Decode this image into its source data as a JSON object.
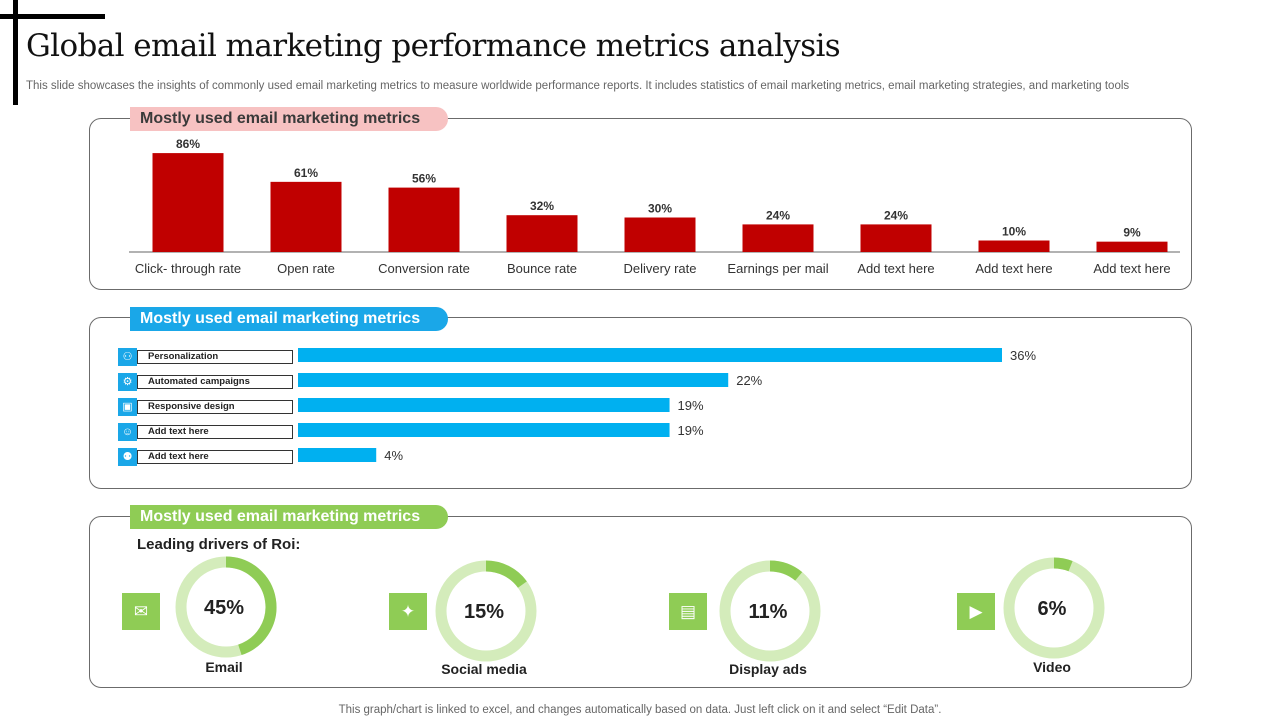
{
  "header": {
    "title": "Global email marketing performance metrics analysis",
    "subtitle": "This slide showcases the insights of commonly used email marketing metrics to measure worldwide performance reports. It includes statistics of email marketing metrics, email marketing strategies, and marketing tools"
  },
  "sections": {
    "metrics_label": "Mostly used email marketing metrics",
    "strategies_label": "Mostly used email marketing metrics",
    "tools_label": "Mostly used email marketing metrics"
  },
  "chart_data": [
    {
      "type": "bar",
      "categories": [
        "Click- through rate",
        "Open rate",
        "Conversion rate",
        "Bounce rate",
        "Delivery rate",
        "Earnings per mail",
        "Add text here",
        "Add text here",
        "Add text here"
      ],
      "values": [
        86,
        61,
        56,
        32,
        30,
        24,
        24,
        10,
        9
      ],
      "data_labels": [
        "86%",
        "61%",
        "56%",
        "32%",
        "30%",
        "24%",
        "24%",
        "10%",
        "9%"
      ],
      "color": "#c00000",
      "ylim": [
        0,
        100
      ]
    },
    {
      "type": "bar",
      "orientation": "horizontal",
      "categories": [
        "Personalization",
        "Automated campaigns",
        "Responsive design",
        "Add text here",
        "Add text here"
      ],
      "values": [
        36,
        22,
        19,
        19,
        4
      ],
      "data_labels": [
        "36%",
        "22%",
        "19%",
        "19%",
        "4%"
      ],
      "icons": [
        "people-icon",
        "gear-icon",
        "book-icon",
        "person-icon",
        "group-icon"
      ],
      "color": "#00b0f0",
      "xlim": [
        0,
        40
      ]
    },
    {
      "type": "pie",
      "subtype": "donut",
      "title": "Leading drivers of Roi:",
      "categories": [
        "Email",
        "Social media",
        "Display ads",
        "Video"
      ],
      "values": [
        45,
        15,
        11,
        6
      ],
      "data_labels": [
        "45%",
        "15%",
        "11%",
        "6%"
      ],
      "icons": [
        "email-icon",
        "social-media-icon",
        "display-ads-icon",
        "video-icon"
      ],
      "color": "#8fcc55",
      "track_color": "#d4ecbb"
    }
  ],
  "footer": {
    "note": "This graph/chart is linked to excel,  and changes automatically based on data. Just left click on it and select “Edit Data”."
  }
}
